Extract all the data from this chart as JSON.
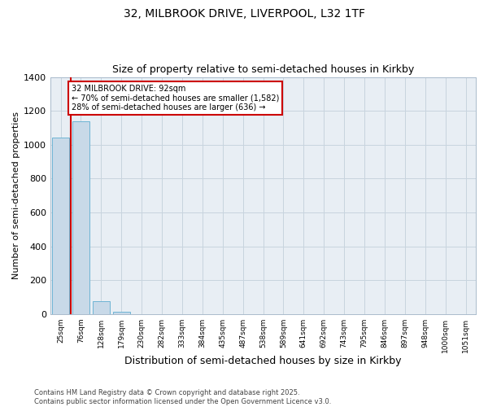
{
  "title1": "32, MILBROOK DRIVE, LIVERPOOL, L32 1TF",
  "title2": "Size of property relative to semi-detached houses in Kirkby",
  "xlabel": "Distribution of semi-detached houses by size in Kirkby",
  "ylabel": "Number of semi-detached properties",
  "bin_labels": [
    "25sqm",
    "76sqm",
    "128sqm",
    "179sqm",
    "230sqm",
    "282sqm",
    "333sqm",
    "384sqm",
    "435sqm",
    "487sqm",
    "538sqm",
    "589sqm",
    "641sqm",
    "692sqm",
    "743sqm",
    "795sqm",
    "846sqm",
    "897sqm",
    "948sqm",
    "1000sqm",
    "1051sqm"
  ],
  "bar_heights": [
    1040,
    1140,
    75,
    15,
    0,
    0,
    0,
    0,
    0,
    0,
    0,
    0,
    0,
    0,
    0,
    0,
    0,
    0,
    0,
    0,
    0
  ],
  "bar_color": "#c8d9e8",
  "bar_edge_color": "#6eb4d4",
  "annotation_line1": "32 MILBROOK DRIVE: 92sqm",
  "annotation_line2": "← 70% of semi-detached houses are smaller (1,582)",
  "annotation_line3": "28% of semi-detached houses are larger (636) →",
  "annotation_box_color": "#ffffff",
  "annotation_box_edge": "#cc0000",
  "red_line_color": "#cc0000",
  "ylim": [
    0,
    1400
  ],
  "yticks": [
    0,
    200,
    400,
    600,
    800,
    1000,
    1200,
    1400
  ],
  "grid_color": "#c8d4de",
  "bg_color": "#e8eef4",
  "footer": "Contains HM Land Registry data © Crown copyright and database right 2025.\nContains public sector information licensed under the Open Government Licence v3.0.",
  "title_fontsize": 10,
  "subtitle_fontsize": 9,
  "ylabel_fontsize": 8,
  "xlabel_fontsize": 9
}
